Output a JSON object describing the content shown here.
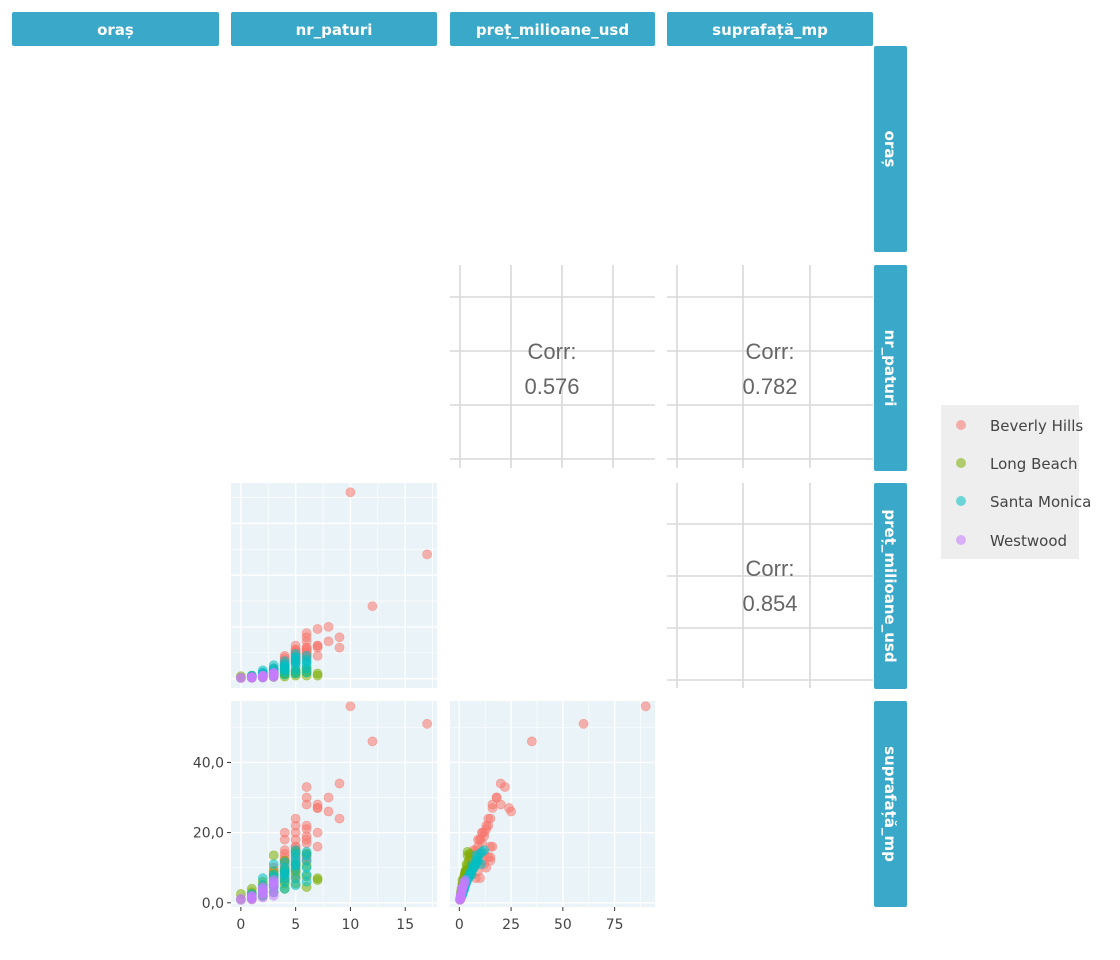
{
  "variables": [
    "oraș",
    "nr_paturi",
    "preț_milioane_usd",
    "suprafață_mp"
  ],
  "colors": {
    "strip_fill": "#3aa9c9",
    "panel_bg": "#eaf3f7",
    "grid": "#ffffff",
    "corr_grid": "#d9d9d9",
    "legend_bg": "#eeeeee"
  },
  "legend": {
    "placement": "right",
    "entries": [
      {
        "label": "Beverly Hills",
        "color": "#f8766d"
      },
      {
        "label": "Long Beach",
        "color": "#7cae00"
      },
      {
        "label": "Santa Monica",
        "color": "#00bfc4"
      },
      {
        "label": "Westwood",
        "color": "#c77cff"
      }
    ]
  },
  "correlations": [
    {
      "row": "nr_paturi",
      "col": "preț_milioane_usd",
      "label": "Corr:",
      "value": "0.576"
    },
    {
      "row": "nr_paturi",
      "col": "suprafață_mp",
      "label": "Corr:",
      "value": "0.782"
    },
    {
      "row": "preț_milioane_usd",
      "col": "suprafață_mp",
      "label": "Corr:",
      "value": "0.854"
    }
  ],
  "axis_ticks": {
    "nr_paturi": [
      "0",
      "5",
      "10",
      "15"
    ],
    "preț_milioane_usd": [
      "0",
      "25",
      "50",
      "75"
    ],
    "suprafață_mp": [
      "0,0",
      "20,0",
      "40,0"
    ]
  },
  "chart_data": {
    "type": "scatter",
    "grid": true,
    "axes": {
      "nr_paturi": {
        "ticks": [
          0,
          5,
          10,
          15
        ],
        "range": [
          -0.9,
          17.9
        ]
      },
      "preț_milioane_usd": {
        "ticks": [
          0,
          25,
          50,
          75
        ],
        "range": [
          -4.5,
          94.5
        ]
      },
      "suprafață_mp": {
        "ticks": [
          0,
          20,
          40
        ],
        "range": [
          -1.2,
          57.5
        ]
      }
    },
    "series": [
      {
        "name": "Beverly Hills",
        "nr_paturi": [
          10,
          17,
          12,
          9,
          8,
          7,
          6,
          5,
          4,
          8,
          9,
          7,
          6,
          5,
          4,
          6,
          5,
          7,
          6,
          5,
          4,
          3,
          5,
          6,
          7,
          4,
          5,
          6,
          5,
          4,
          3,
          5,
          4,
          6,
          7,
          5,
          6,
          4,
          5,
          3,
          5,
          4,
          6,
          5,
          4,
          2,
          3,
          1,
          4,
          5,
          6,
          4,
          3,
          4,
          5,
          6,
          5
        ],
        "preț_milioane_usd": [
          90,
          60,
          35,
          20,
          18,
          16,
          14,
          12,
          10,
          25,
          15,
          16,
          18,
          9,
          7,
          22,
          13,
          11,
          10,
          8,
          6,
          5,
          14,
          20,
          24,
          11,
          16,
          13,
          10,
          9,
          4,
          9,
          7,
          12,
          15,
          14,
          15,
          8,
          12,
          3,
          11,
          5,
          15,
          13,
          7,
          1.5,
          2.5,
          0.5,
          6,
          10,
          12,
          8,
          3,
          5,
          9,
          11,
          8
        ],
        "suprafață_mp": [
          56,
          51,
          46,
          34,
          30,
          28,
          22,
          20,
          18,
          26,
          24,
          27,
          30,
          16,
          14,
          33,
          22,
          20,
          18,
          15,
          12,
          10,
          24,
          28,
          27,
          20,
          16,
          21,
          14,
          12,
          9,
          18,
          15,
          19,
          16,
          13,
          12,
          11,
          11,
          8,
          12,
          9,
          13,
          10,
          10,
          3,
          5,
          1,
          8,
          7,
          14,
          7,
          6,
          13,
          9,
          17,
          11
        ]
      },
      {
        "name": "Long Beach",
        "nr_paturi": [
          0,
          0,
          1,
          1,
          1,
          2,
          2,
          2,
          2,
          3,
          3,
          3,
          3,
          3,
          4,
          4,
          4,
          4,
          5,
          5,
          5,
          6,
          6,
          6,
          7,
          7,
          1,
          2,
          3,
          4,
          5,
          2,
          3,
          4,
          5,
          6
        ],
        "preț_milioane_usd": [
          0.4,
          1.2,
          0.5,
          0.8,
          1.5,
          0.6,
          1.2,
          1.8,
          2.5,
          0.8,
          1.5,
          2.2,
          3.0,
          4.0,
          1.0,
          2.0,
          3.0,
          4.5,
          1.5,
          2.5,
          3.5,
          1.5,
          3.0,
          5.0,
          1.5,
          2.5,
          1.0,
          1.5,
          2.5,
          3.5,
          4.0,
          0.8,
          1.8,
          2.5,
          3.0,
          3.8
        ],
        "suprafață_mp": [
          1.0,
          2.5,
          1.5,
          3.0,
          4.0,
          2.0,
          3.5,
          5.0,
          6.0,
          3.0,
          5.0,
          7.0,
          9.0,
          13.5,
          4.0,
          6.5,
          9.0,
          12.0,
          5.5,
          8.0,
          11.0,
          4.5,
          7.5,
          14.0,
          6.5,
          7.0,
          2.5,
          3.0,
          8.0,
          9.5,
          14.5,
          2.0,
          4.5,
          5.5,
          9.0,
          10.5
        ]
      },
      {
        "name": "Santa Monica",
        "nr_paturi": [
          1,
          1,
          2,
          2,
          2,
          2,
          3,
          3,
          3,
          3,
          3,
          4,
          4,
          4,
          4,
          5,
          5,
          5,
          5,
          5,
          5,
          6,
          6,
          6,
          6,
          6,
          1,
          2,
          3,
          4,
          4,
          5,
          3,
          4,
          5,
          6,
          2,
          3,
          4,
          5
        ],
        "preț_milioane_usd": [
          0.8,
          1.5,
          1.0,
          2.0,
          3.0,
          4.0,
          1.5,
          2.5,
          3.5,
          5.0,
          6.5,
          2.0,
          3.5,
          5.0,
          7.0,
          2.5,
          4.0,
          6.0,
          8.0,
          10.0,
          12.0,
          3.0,
          5.0,
          7.0,
          9.0,
          11.0,
          1.2,
          2.5,
          4.5,
          6.0,
          8.5,
          9.0,
          3.0,
          4.5,
          7.5,
          8.0,
          1.8,
          2.8,
          6.0,
          10.5
        ],
        "suprafață_mp": [
          1.5,
          2.5,
          2.0,
          3.5,
          5.0,
          7.0,
          3.0,
          4.5,
          6.0,
          8.0,
          11.0,
          4.0,
          6.0,
          8.5,
          10.0,
          5.0,
          7.0,
          9.5,
          12.0,
          14.0,
          15.0,
          6.0,
          8.0,
          10.0,
          12.0,
          14.5,
          2.0,
          4.0,
          7.5,
          9.0,
          11.5,
          13.0,
          5.5,
          7.0,
          10.5,
          13.5,
          3.0,
          5.0,
          8.0,
          11.0
        ]
      },
      {
        "name": "Westwood",
        "nr_paturi": [
          0,
          0,
          1,
          1,
          1,
          2,
          2,
          2,
          2,
          3,
          3,
          3,
          3,
          3,
          1,
          2,
          3,
          2,
          3,
          1
        ],
        "preț_milioane_usd": [
          0.3,
          0.5,
          0.4,
          0.6,
          0.8,
          0.5,
          0.8,
          1.2,
          1.6,
          0.8,
          1.2,
          1.8,
          2.5,
          3.0,
          0.5,
          1.0,
          2.0,
          1.4,
          2.2,
          0.7
        ],
        "suprafață_mp": [
          0.8,
          1.2,
          1.0,
          1.5,
          2.0,
          1.5,
          2.5,
          3.5,
          4.5,
          2.0,
          3.0,
          4.5,
          5.5,
          6.5,
          1.2,
          2.8,
          5.0,
          4.0,
          6.0,
          1.8
        ]
      }
    ]
  }
}
